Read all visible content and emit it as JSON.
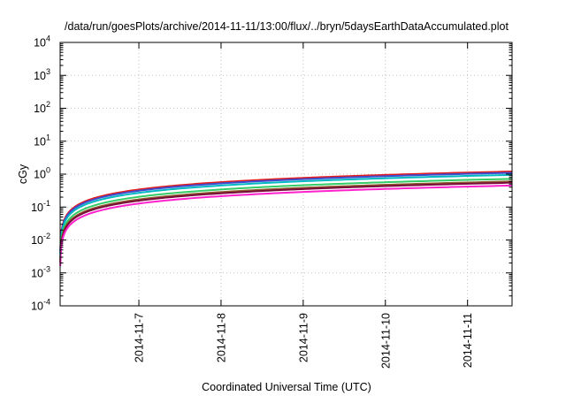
{
  "chart_data": {
    "type": "line",
    "title": "/data/run/goesPlots/archive/2014-11-11/13:00/flux/../bryn/5daysEarthDataAccumulated.plot",
    "xlabel": "Coordinated Universal Time (UTC)",
    "ylabel": "cGy",
    "x_axis": {
      "type": "date",
      "range": [
        "2014-11-06T01:00",
        "2014-11-11T13:00"
      ],
      "ticks": [
        "2014-11-7",
        "2014-11-8",
        "2014-11-9",
        "2014-11-10",
        "2014-11-11"
      ]
    },
    "y_axis": {
      "scale": "log",
      "range": [
        0.0001,
        10000
      ],
      "ticks": [
        {
          "base": "10",
          "exp": "-4"
        },
        {
          "base": "10",
          "exp": "-3"
        },
        {
          "base": "10",
          "exp": "-2"
        },
        {
          "base": "10",
          "exp": "-1"
        },
        {
          "base": "10",
          "exp": "0"
        },
        {
          "base": "10",
          "exp": "1"
        },
        {
          "base": "10",
          "exp": "2"
        },
        {
          "base": "10",
          "exp": "3"
        },
        {
          "base": "10",
          "exp": "4"
        }
      ]
    },
    "grid": true,
    "legend": "none",
    "series": [
      {
        "color": "#e41a1c",
        "final_value": 1.2
      },
      {
        "color": "#3a4fd0",
        "final_value": 1.1
      },
      {
        "color": "#00b8c0",
        "final_value": 0.95
      },
      {
        "color": "#33cc66",
        "final_value": 0.72
      },
      {
        "color": "#8b5a2b",
        "final_value": 0.6
      },
      {
        "color": "#7a0a3a",
        "final_value": 0.55
      },
      {
        "color": "#ff22cc",
        "final_value": 0.45
      }
    ]
  }
}
